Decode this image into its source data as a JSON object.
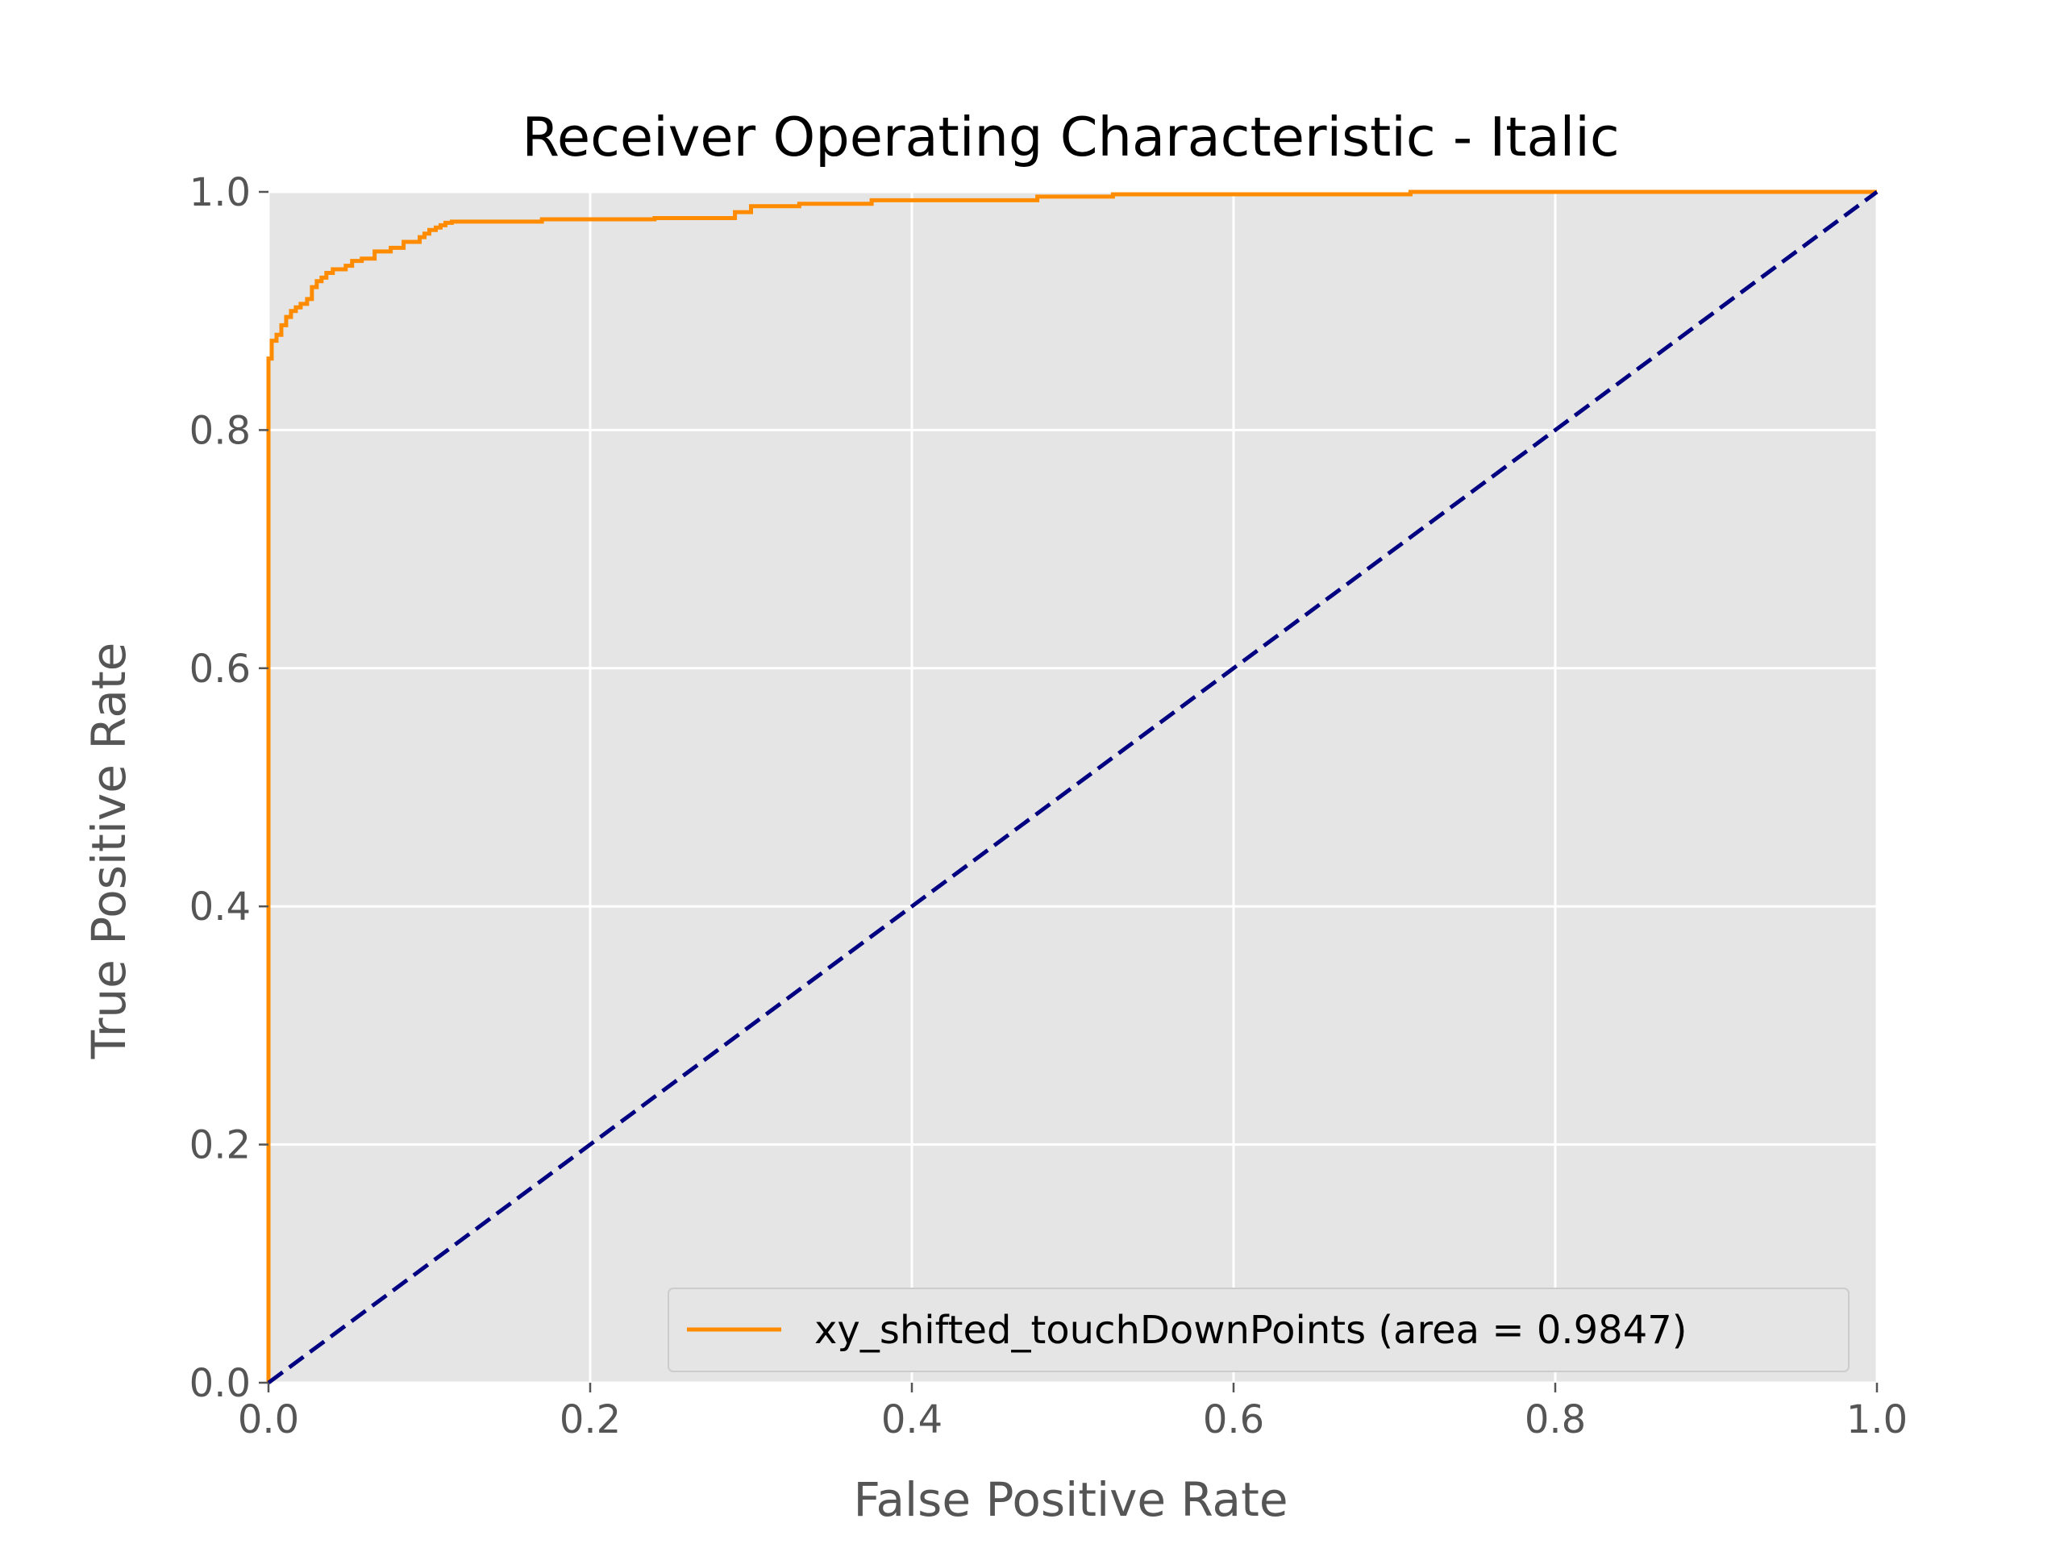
{
  "colors": {
    "background": "#ffffff",
    "plot_background": "#e5e5e5",
    "grid": "#ffffff",
    "tick_text": "#555555",
    "roc_line": "#ff8c00",
    "reference_line": "#000080"
  },
  "chart_data": {
    "type": "line",
    "title": "Receiver Operating Characteristic - Italic",
    "xlabel": "False Positive Rate",
    "ylabel": "True Positive Rate",
    "xlim": [
      0.0,
      1.0
    ],
    "ylim": [
      0.0,
      1.0
    ],
    "xticks": [
      "0.0",
      "0.2",
      "0.4",
      "0.6",
      "0.8",
      "1.0"
    ],
    "yticks": [
      "0.0",
      "0.2",
      "0.4",
      "0.6",
      "0.8",
      "1.0"
    ],
    "grid": true,
    "legend_position": "bottom-right",
    "series": [
      {
        "name": "xy_shifted_touchDownPoints (area = 0.9847)",
        "color": "#ff8c00",
        "style": "solid",
        "x": [
          0.0,
          0.0,
          0.002,
          0.002,
          0.005,
          0.005,
          0.008,
          0.008,
          0.011,
          0.011,
          0.014,
          0.014,
          0.017,
          0.017,
          0.02,
          0.02,
          0.024,
          0.024,
          0.027,
          0.027,
          0.03,
          0.03,
          0.033,
          0.033,
          0.036,
          0.036,
          0.04,
          0.04,
          0.048,
          0.048,
          0.052,
          0.052,
          0.058,
          0.058,
          0.066,
          0.066,
          0.076,
          0.076,
          0.084,
          0.084,
          0.094,
          0.094,
          0.097,
          0.097,
          0.1,
          0.1,
          0.104,
          0.104,
          0.107,
          0.107,
          0.11,
          0.11,
          0.114,
          0.114,
          0.17,
          0.17,
          0.24,
          0.24,
          0.29,
          0.29,
          0.3,
          0.3,
          0.33,
          0.33,
          0.375,
          0.375,
          0.478,
          0.478,
          0.525,
          0.525,
          0.71,
          0.71,
          1.0
        ],
        "y": [
          0.0,
          0.86,
          0.86,
          0.875,
          0.875,
          0.88,
          0.88,
          0.888,
          0.888,
          0.895,
          0.895,
          0.9,
          0.9,
          0.903,
          0.903,
          0.906,
          0.906,
          0.91,
          0.91,
          0.92,
          0.92,
          0.925,
          0.925,
          0.928,
          0.928,
          0.932,
          0.932,
          0.935,
          0.935,
          0.938,
          0.938,
          0.942,
          0.942,
          0.944,
          0.944,
          0.95,
          0.95,
          0.953,
          0.953,
          0.958,
          0.958,
          0.962,
          0.962,
          0.965,
          0.965,
          0.968,
          0.968,
          0.97,
          0.97,
          0.972,
          0.972,
          0.974,
          0.974,
          0.975,
          0.975,
          0.977,
          0.977,
          0.978,
          0.978,
          0.983,
          0.983,
          0.988,
          0.988,
          0.99,
          0.99,
          0.993,
          0.993,
          0.996,
          0.996,
          0.998,
          0.998,
          1.0,
          1.0
        ]
      },
      {
        "name": "",
        "color": "#000080",
        "style": "dashed",
        "x": [
          0.0,
          1.0
        ],
        "y": [
          0.0,
          1.0
        ]
      }
    ]
  }
}
